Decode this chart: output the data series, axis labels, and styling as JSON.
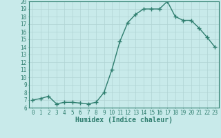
{
  "x": [
    0,
    1,
    2,
    3,
    4,
    5,
    6,
    7,
    8,
    9,
    10,
    11,
    12,
    13,
    14,
    15,
    16,
    17,
    18,
    19,
    20,
    21,
    22,
    23
  ],
  "y": [
    7,
    7.2,
    7.5,
    6.5,
    6.7,
    6.7,
    6.6,
    6.5,
    6.7,
    8.0,
    11.0,
    14.7,
    17.2,
    18.3,
    19.0,
    19.0,
    19.0,
    20.0,
    18.0,
    17.5,
    17.5,
    16.5,
    15.3,
    14.0
  ],
  "line_color": "#2e7d6e",
  "marker": "+",
  "marker_size": 4,
  "marker_lw": 1.0,
  "bg_color": "#c8eaea",
  "grid_color": "#b0d4d4",
  "xlabel": "Humidex (Indice chaleur)",
  "xlim": [
    -0.5,
    23.5
  ],
  "ylim": [
    6,
    20
  ],
  "yticks": [
    6,
    7,
    8,
    9,
    10,
    11,
    12,
    13,
    14,
    15,
    16,
    17,
    18,
    19,
    20
  ],
  "xticks": [
    0,
    1,
    2,
    3,
    4,
    5,
    6,
    7,
    8,
    9,
    10,
    11,
    12,
    13,
    14,
    15,
    16,
    17,
    18,
    19,
    20,
    21,
    22,
    23
  ],
  "tick_fontsize": 5.5,
  "label_fontsize": 7.0,
  "line_width": 1.0
}
